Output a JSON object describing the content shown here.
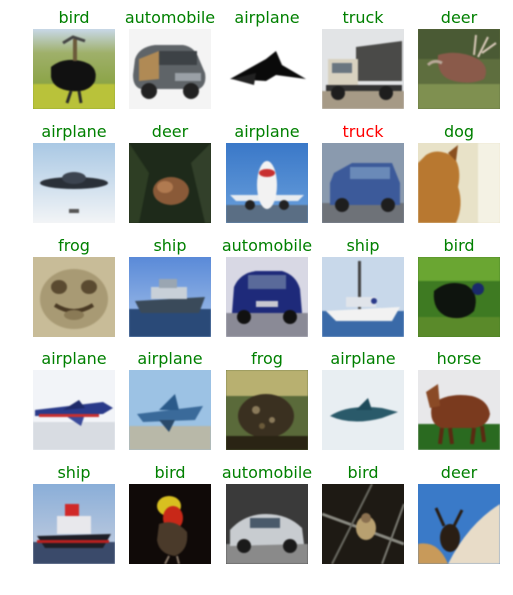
{
  "grid": {
    "label_colors": {
      "correct": "#008000",
      "incorrect": "#ff0000"
    },
    "rows": [
      [
        {
          "label": "bird",
          "status": "correct"
        },
        {
          "label": "automobile",
          "status": "correct"
        },
        {
          "label": "airplane",
          "status": "correct"
        },
        {
          "label": "truck",
          "status": "correct"
        },
        {
          "label": "deer",
          "status": "correct"
        }
      ],
      [
        {
          "label": "airplane",
          "status": "correct"
        },
        {
          "label": "deer",
          "status": "correct"
        },
        {
          "label": "airplane",
          "status": "correct"
        },
        {
          "label": "truck",
          "status": "incorrect"
        },
        {
          "label": "dog",
          "status": "correct"
        }
      ],
      [
        {
          "label": "frog",
          "status": "correct"
        },
        {
          "label": "ship",
          "status": "correct"
        },
        {
          "label": "automobile",
          "status": "correct"
        },
        {
          "label": "ship",
          "status": "correct"
        },
        {
          "label": "bird",
          "status": "correct"
        }
      ],
      [
        {
          "label": "airplane",
          "status": "correct"
        },
        {
          "label": "airplane",
          "status": "correct"
        },
        {
          "label": "frog",
          "status": "correct"
        },
        {
          "label": "airplane",
          "status": "correct"
        },
        {
          "label": "horse",
          "status": "correct"
        }
      ],
      [
        {
          "label": "ship",
          "status": "correct"
        },
        {
          "label": "bird",
          "status": "correct"
        },
        {
          "label": "automobile",
          "status": "correct"
        },
        {
          "label": "bird",
          "status": "correct"
        },
        {
          "label": "deer",
          "status": "correct"
        }
      ]
    ]
  }
}
